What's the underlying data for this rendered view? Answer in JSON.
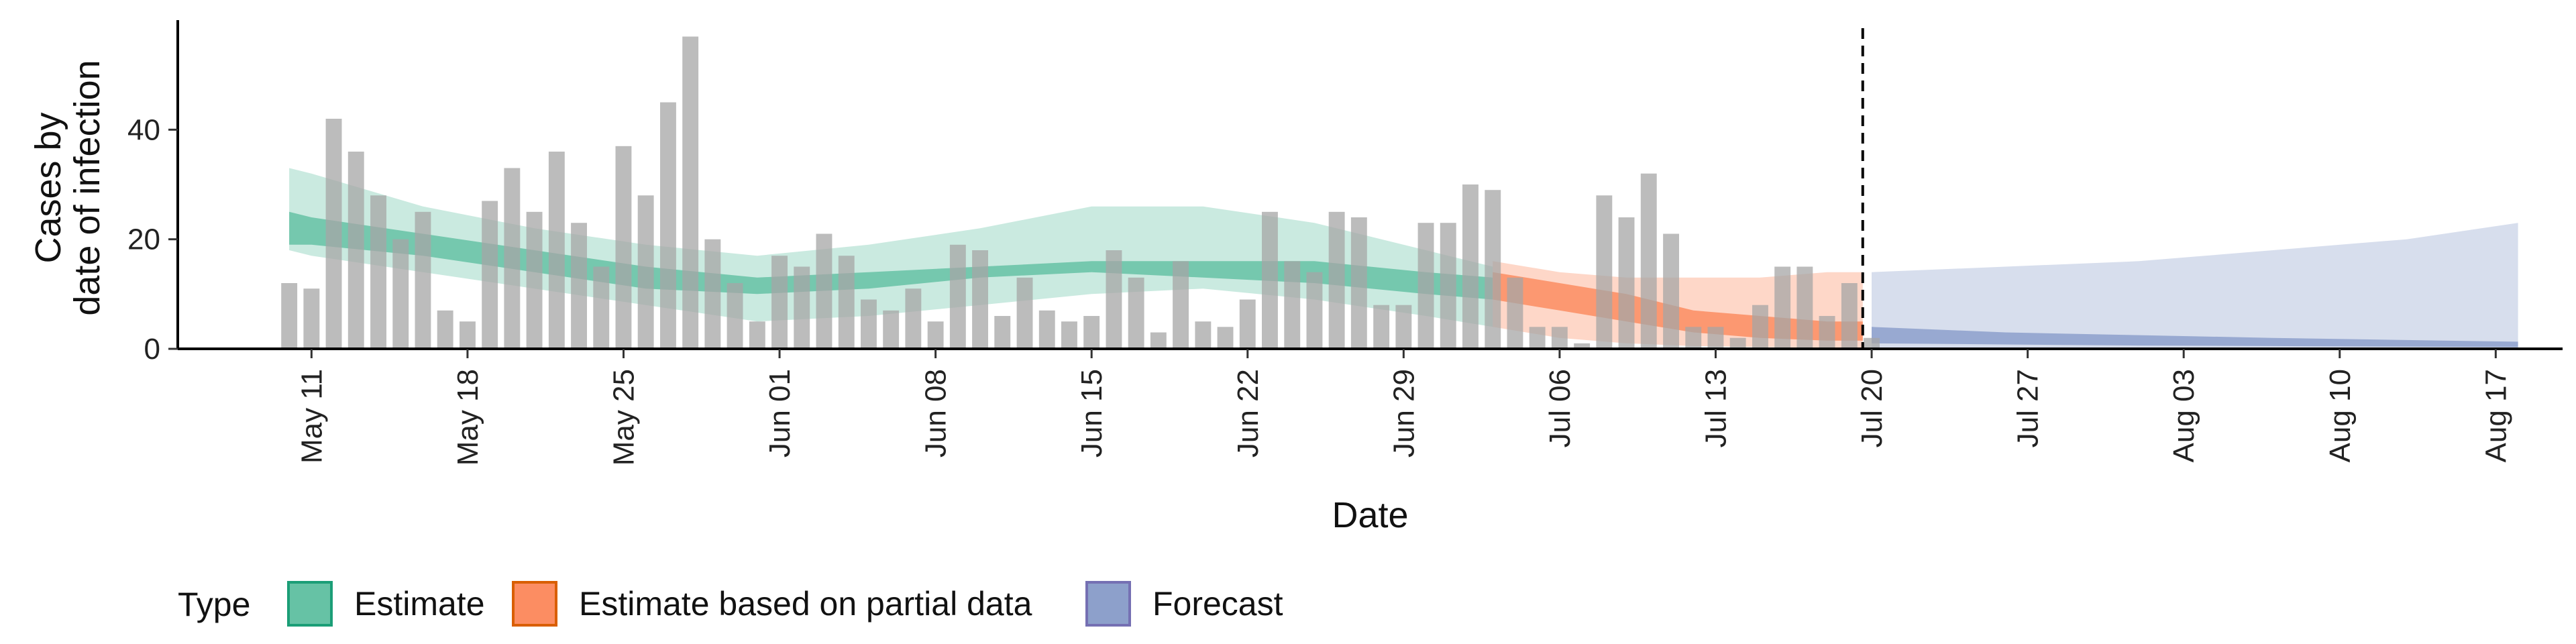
{
  "chart_data": {
    "type": "bar",
    "xlabel": "Date",
    "ylabel": [
      "Cases by",
      "date of infection"
    ],
    "x_ticks": [
      "May 11",
      "May 18",
      "May 25",
      "Jun 01",
      "Jun 08",
      "Jun 15",
      "Jun 22",
      "Jun 29",
      "Jul 06",
      "Jul 13",
      "Jul 20",
      "Jul 27",
      "Aug 03",
      "Aug 10",
      "Aug 17"
    ],
    "y_ticks": [
      0,
      20,
      40
    ],
    "ylim": [
      0,
      60
    ],
    "xlim_days": [
      -6,
      101
    ],
    "x_start_date": "May 11",
    "vline_day": 69.6,
    "grid": false,
    "bars": [
      {
        "day": -1,
        "value": 12
      },
      {
        "day": 0,
        "value": 11
      },
      {
        "day": 1,
        "value": 42
      },
      {
        "day": 2,
        "value": 36
      },
      {
        "day": 3,
        "value": 28
      },
      {
        "day": 4,
        "value": 20
      },
      {
        "day": 5,
        "value": 25
      },
      {
        "day": 6,
        "value": 7
      },
      {
        "day": 7,
        "value": 5
      },
      {
        "day": 8,
        "value": 27
      },
      {
        "day": 9,
        "value": 33
      },
      {
        "day": 10,
        "value": 25
      },
      {
        "day": 11,
        "value": 36
      },
      {
        "day": 12,
        "value": 23
      },
      {
        "day": 13,
        "value": 15
      },
      {
        "day": 14,
        "value": 37
      },
      {
        "day": 15,
        "value": 28
      },
      {
        "day": 16,
        "value": 45
      },
      {
        "day": 17,
        "value": 57
      },
      {
        "day": 18,
        "value": 20
      },
      {
        "day": 19,
        "value": 12
      },
      {
        "day": 20,
        "value": 5
      },
      {
        "day": 21,
        "value": 17
      },
      {
        "day": 22,
        "value": 15
      },
      {
        "day": 23,
        "value": 21
      },
      {
        "day": 24,
        "value": 17
      },
      {
        "day": 25,
        "value": 9
      },
      {
        "day": 26,
        "value": 7
      },
      {
        "day": 27,
        "value": 11
      },
      {
        "day": 28,
        "value": 5
      },
      {
        "day": 29,
        "value": 19
      },
      {
        "day": 30,
        "value": 18
      },
      {
        "day": 31,
        "value": 6
      },
      {
        "day": 32,
        "value": 13
      },
      {
        "day": 33,
        "value": 7
      },
      {
        "day": 34,
        "value": 5
      },
      {
        "day": 35,
        "value": 6
      },
      {
        "day": 36,
        "value": 18
      },
      {
        "day": 37,
        "value": 13
      },
      {
        "day": 38,
        "value": 3
      },
      {
        "day": 39,
        "value": 16
      },
      {
        "day": 40,
        "value": 5
      },
      {
        "day": 41,
        "value": 4
      },
      {
        "day": 42,
        "value": 9
      },
      {
        "day": 43,
        "value": 25
      },
      {
        "day": 44,
        "value": 16
      },
      {
        "day": 45,
        "value": 14
      },
      {
        "day": 46,
        "value": 25
      },
      {
        "day": 47,
        "value": 24
      },
      {
        "day": 48,
        "value": 8
      },
      {
        "day": 49,
        "value": 8
      },
      {
        "day": 50,
        "value": 23
      },
      {
        "day": 51,
        "value": 23
      },
      {
        "day": 52,
        "value": 30
      },
      {
        "day": 53,
        "value": 29
      },
      {
        "day": 54,
        "value": 13
      },
      {
        "day": 55,
        "value": 4
      },
      {
        "day": 56,
        "value": 4
      },
      {
        "day": 57,
        "value": 1
      },
      {
        "day": 58,
        "value": 28
      },
      {
        "day": 59,
        "value": 24
      },
      {
        "day": 60,
        "value": 32
      },
      {
        "day": 61,
        "value": 21
      },
      {
        "day": 62,
        "value": 4
      },
      {
        "day": 63,
        "value": 4
      },
      {
        "day": 64,
        "value": 2
      },
      {
        "day": 65,
        "value": 8
      },
      {
        "day": 66,
        "value": 15
      },
      {
        "day": 67,
        "value": 15
      },
      {
        "day": 68,
        "value": 6
      },
      {
        "day": 69,
        "value": 12
      },
      {
        "day": 70,
        "value": 2
      }
    ],
    "series": [
      {
        "name": "Estimate",
        "color": "#1b9e77",
        "fill": "#66c2a5",
        "x": [
          -1,
          0,
          5,
          10,
          15,
          20,
          25,
          30,
          35,
          40,
          45,
          50,
          53
        ],
        "outer": [
          [
            18,
            33
          ],
          [
            17,
            32
          ],
          [
            14,
            26
          ],
          [
            11,
            22
          ],
          [
            8,
            19
          ],
          [
            5,
            17
          ],
          [
            6,
            19
          ],
          [
            8,
            22
          ],
          [
            10,
            26
          ],
          [
            11,
            26
          ],
          [
            9,
            23
          ],
          [
            6,
            18
          ],
          [
            4,
            15
          ]
        ],
        "inner": [
          [
            19,
            25
          ],
          [
            19,
            24
          ],
          [
            17,
            21
          ],
          [
            14,
            18
          ],
          [
            11,
            15
          ],
          [
            10,
            13
          ],
          [
            11,
            14
          ],
          [
            13,
            15
          ],
          [
            14,
            16
          ],
          [
            13,
            16
          ],
          [
            12,
            16
          ],
          [
            10,
            14
          ],
          [
            9,
            13
          ]
        ]
      },
      {
        "name": "Estimate based on partial data",
        "color": "#d95f02",
        "fill": "#fc8d62",
        "x": [
          53,
          56,
          59,
          62,
          65,
          68,
          69.6
        ],
        "outer": [
          [
            4,
            16
          ],
          [
            2,
            14
          ],
          [
            1,
            13
          ],
          [
            0.5,
            13
          ],
          [
            0.3,
            13
          ],
          [
            0.2,
            14
          ],
          [
            0.1,
            14
          ]
        ],
        "inner": [
          [
            9,
            14
          ],
          [
            7,
            12
          ],
          [
            5,
            10
          ],
          [
            3,
            7
          ],
          [
            2,
            6
          ],
          [
            1.5,
            5
          ],
          [
            1.5,
            5
          ]
        ]
      },
      {
        "name": "Forecast",
        "color": "#7570b3",
        "fill": "#8da0cb",
        "x": [
          70,
          76,
          82,
          88,
          94,
          99
        ],
        "outer": [
          [
            0,
            14
          ],
          [
            0,
            15
          ],
          [
            0,
            16
          ],
          [
            0,
            18
          ],
          [
            0,
            20
          ],
          [
            0,
            23
          ]
        ],
        "inner": [
          [
            1,
            4
          ],
          [
            0.8,
            3
          ],
          [
            0.6,
            2.5
          ],
          [
            0.5,
            2
          ],
          [
            0.4,
            1.6
          ],
          [
            0.3,
            1.3
          ]
        ]
      }
    ],
    "legend": {
      "title": "Type",
      "position": "bottom-left",
      "items": [
        {
          "label": "Estimate",
          "fill": "#66c2a5",
          "border": "#1b9e77"
        },
        {
          "label": "Estimate based on partial data",
          "fill": "#fc8d62",
          "border": "#d95f02"
        },
        {
          "label": "Forecast",
          "fill": "#8da0cb",
          "border": "#7570b3"
        }
      ]
    }
  }
}
